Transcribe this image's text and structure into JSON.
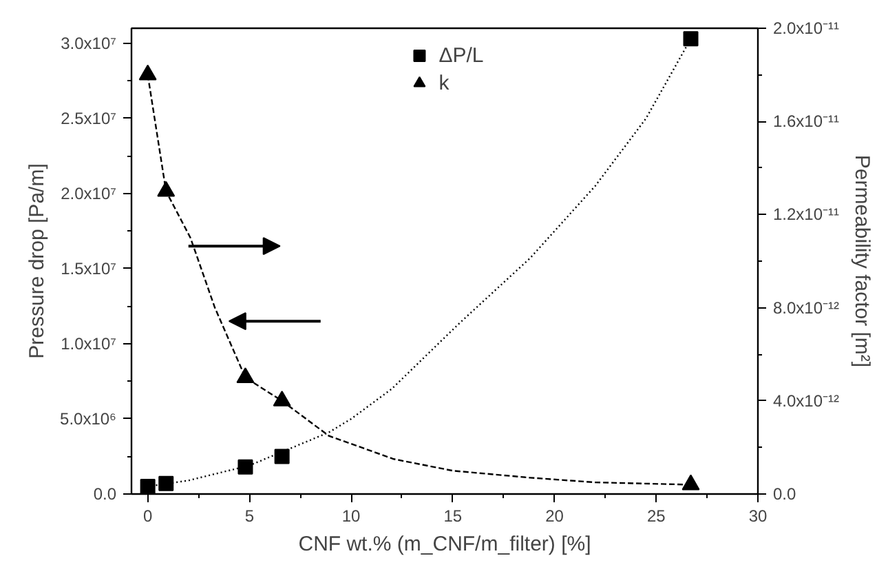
{
  "chart_data": {
    "type": "scatter",
    "xlabel": "CNF wt.% (m_CNF/m_filter) [%]",
    "ylabel": "Pressure drop [Pa/m]",
    "y2label": "Permeability factor [m²]",
    "xlim": [
      -0.8,
      30
    ],
    "xticks": [
      0,
      5,
      10,
      15,
      20,
      25,
      30
    ],
    "ylim": [
      0,
      31000000
    ],
    "yticks": [
      {
        "value": 0,
        "label": "0.0"
      },
      {
        "value": 5000000,
        "label": "5.0x10⁶"
      },
      {
        "value": 10000000,
        "label": "1.0x10⁷"
      },
      {
        "value": 15000000,
        "label": "1.5x10⁷"
      },
      {
        "value": 20000000,
        "label": "2.0x10⁷"
      },
      {
        "value": 25000000,
        "label": "2.5x10⁷"
      },
      {
        "value": 30000000,
        "label": "3.0x10⁷"
      }
    ],
    "y2lim": [
      0,
      2e-11
    ],
    "y2ticks": [
      {
        "value": 0,
        "label": "0.0"
      },
      {
        "value": 4e-12,
        "label": "4.0x10⁻¹²"
      },
      {
        "value": 8e-12,
        "label": "8.0x10⁻¹²"
      },
      {
        "value": 1.2e-11,
        "label": "1.2x10⁻¹¹"
      },
      {
        "value": 1.6e-11,
        "label": "1.6x10⁻¹¹"
      },
      {
        "value": 2e-11,
        "label": "2.0x10⁻¹¹"
      }
    ],
    "series": [
      {
        "name": "ΔP/L",
        "marker": "square",
        "color": "#000000",
        "x": [
          0,
          0.9,
          4.8,
          6.6,
          26.7
        ],
        "values": [
          500000,
          700000,
          1800000,
          2500000,
          30300000
        ]
      },
      {
        "name": "k",
        "marker": "triangle",
        "axis": "y2",
        "color": "#000000",
        "x": [
          0,
          0.9,
          4.8,
          6.6,
          26.7
        ],
        "values": [
          1.8e-11,
          1.3e-11,
          5e-12,
          4e-12,
          4e-13
        ]
      },
      {
        "type": "line",
        "marker": "none",
        "line_style": "dotted",
        "color": "#000000",
        "x": [
          0,
          2,
          5,
          8.9,
          10,
          12,
          15.35,
          18.8,
          22,
          24.5,
          26.7
        ],
        "values": [
          500000,
          900000,
          1900000,
          4100000,
          5000000,
          7000000,
          11400000,
          15700000,
          20500000,
          25000000,
          30300000
        ]
      },
      {
        "type": "line",
        "marker": "none",
        "line_style": "dashed",
        "axis": "y2",
        "color": "#000000",
        "x": [
          0,
          0.9,
          2.1,
          3.3,
          4.8,
          6.6,
          8.9,
          12.1,
          15,
          18.8,
          22,
          26.7
        ],
        "values": [
          1.8e-11,
          1.3e-11,
          1.1e-11,
          8e-12,
          5e-12,
          4e-12,
          2.5e-12,
          1.5e-12,
          1e-12,
          7e-13,
          5e-13,
          4e-13
        ]
      }
    ],
    "legend": "top",
    "grid": false
  }
}
